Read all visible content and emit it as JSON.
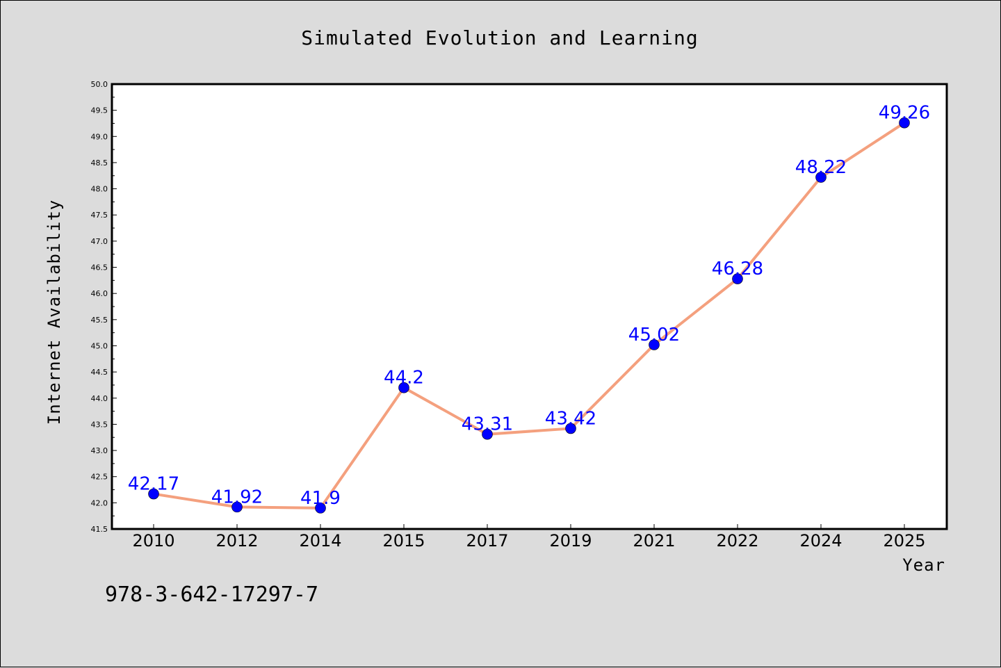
{
  "chart_data": {
    "type": "line",
    "title": "Simulated Evolution and Learning",
    "xlabel": "Year",
    "ylabel": "Internet Availability",
    "categories": [
      "2010",
      "2012",
      "2014",
      "2015",
      "2017",
      "2019",
      "2021",
      "2022",
      "2024",
      "2025"
    ],
    "series": [
      {
        "values": [
          42.17,
          41.92,
          41.9,
          44.2,
          43.31,
          43.42,
          45.02,
          46.28,
          48.22,
          49.26
        ],
        "labels": [
          "42.17",
          "41.92",
          "41.9",
          "44.2",
          "43.31",
          "43.42",
          "45.02",
          "46.28",
          "48.22",
          "49.26"
        ],
        "line_color": "#f4a07e",
        "marker_color": "#0000ff"
      }
    ],
    "ylim": [
      41.5,
      50.0
    ],
    "yticks": [
      "41.5",
      "42.0",
      "42.5",
      "43.0",
      "43.5",
      "44.0",
      "44.5",
      "45.0",
      "45.5",
      "46.0",
      "46.5",
      "47.0",
      "47.5",
      "48.0",
      "48.5",
      "49.0",
      "49.5",
      "50.0"
    ],
    "grid": false,
    "background": "#dcdcdc",
    "plot_background": "#ffffff"
  },
  "footnote": "978-3-642-17297-7"
}
